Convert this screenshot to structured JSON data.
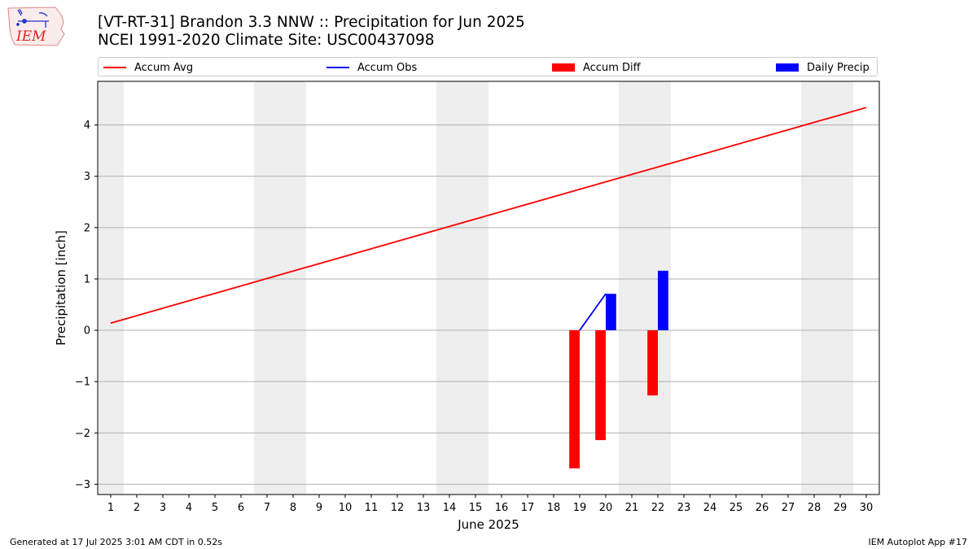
{
  "header": {
    "title_line1": "[VT-RT-31] Brandon 3.3 NNW :: Precipitation for Jun 2025",
    "title_line2": "NCEI 1991-2020 Climate Site: USC00437098",
    "logo_text": "IEM"
  },
  "footer": {
    "generated": "Generated at 17 Jul 2025 3:01 AM CDT in 0.52s",
    "app": "IEM Autoplot App #17"
  },
  "legend": {
    "items": [
      {
        "label": "Accum Avg",
        "color": "#ff0000",
        "kind": "line"
      },
      {
        "label": "Accum Obs",
        "color": "#0000ff",
        "kind": "line"
      },
      {
        "label": "Accum Diff",
        "color": "#ff0000",
        "kind": "bar"
      },
      {
        "label": "Daily Precip",
        "color": "#0000ff",
        "kind": "bar"
      }
    ],
    "placement": "top, above plot"
  },
  "chart_data": {
    "type": "bar",
    "xlabel": "June 2025",
    "ylabel": "Precipitation [inch]",
    "xlim": [
      0.5,
      30.5
    ],
    "ylim": [
      -3.2,
      4.85
    ],
    "x_ticks": [
      1,
      2,
      3,
      4,
      5,
      6,
      7,
      8,
      9,
      10,
      11,
      12,
      13,
      14,
      15,
      16,
      17,
      18,
      19,
      20,
      21,
      22,
      23,
      24,
      25,
      26,
      27,
      28,
      29,
      30
    ],
    "y_ticks": [
      4,
      3,
      2,
      1,
      0,
      -1,
      -2,
      -3
    ],
    "y_tick_labels": [
      "4",
      "3",
      "2",
      "1",
      "0",
      "−1",
      "−2",
      "−3"
    ],
    "grid": "horizontal",
    "weekend_shading": [
      [
        0.5,
        1.5
      ],
      [
        6.5,
        8.5
      ],
      [
        13.5,
        15.5
      ],
      [
        20.5,
        22.5
      ],
      [
        27.5,
        29.5
      ]
    ],
    "shade_color": "#eeeeee",
    "series": [
      {
        "name": "Accum Avg",
        "kind": "line",
        "color": "#ff0000",
        "x": [
          1,
          30
        ],
        "values": [
          0.14,
          4.34
        ]
      },
      {
        "name": "Accum Obs",
        "kind": "line",
        "color": "#0000ff",
        "x": [
          19,
          20
        ],
        "values": [
          0.0,
          0.71
        ]
      },
      {
        "name": "Accum Diff",
        "kind": "bar",
        "color": "#ff0000",
        "x": [
          19,
          20,
          22
        ],
        "values": [
          -2.69,
          -2.14,
          -1.27
        ]
      },
      {
        "name": "Daily Precip",
        "kind": "bar",
        "color": "#0000ff",
        "x": [
          20,
          22
        ],
        "values": [
          0.71,
          1.16
        ]
      }
    ]
  }
}
